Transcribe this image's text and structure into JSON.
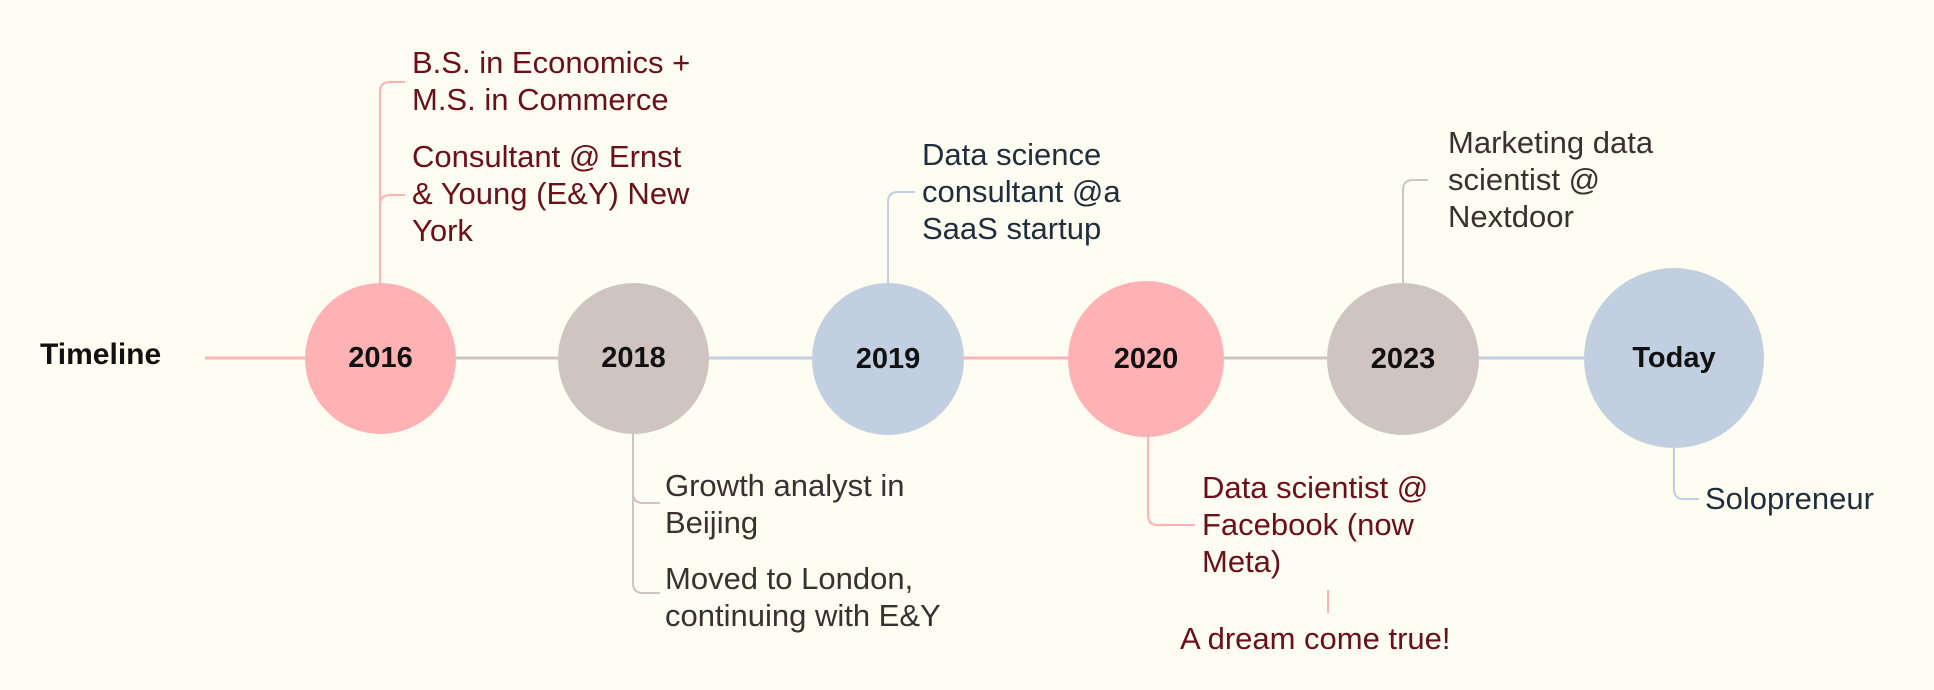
{
  "title": "Timeline",
  "colors": {
    "background": "#fefdf1",
    "pink": "#feb2b4",
    "taupe": "#cfc4bf",
    "blue": "#c2cfe0",
    "red_text": "#6b0f1a",
    "navy_text": "#1f2d3d",
    "dark_text": "#3a3030"
  },
  "nodes": [
    {
      "label": "2016"
    },
    {
      "label": "2018"
    },
    {
      "label": "2019"
    },
    {
      "label": "2020"
    },
    {
      "label": "2023"
    },
    {
      "label": "Today"
    }
  ],
  "events": {
    "e2016a": [
      "B.S. in Economics +",
      "M.S. in Commerce"
    ],
    "e2016b": [
      "Consultant @ Ernst",
      "& Young (E&Y) New",
      "York"
    ],
    "e2018a": [
      "Growth analyst in",
      "Beijing"
    ],
    "e2018b": [
      "Moved to London,",
      "continuing with E&Y"
    ],
    "e2019": [
      "Data science",
      "consultant @a",
      "SaaS startup"
    ],
    "e2020": [
      "Data scientist @",
      "Facebook (now",
      "Meta)"
    ],
    "e2020note": "A dream come true!",
    "e2023": [
      "Marketing data",
      "scientist @",
      "Nextdoor"
    ],
    "eToday": "Solopreneur"
  }
}
